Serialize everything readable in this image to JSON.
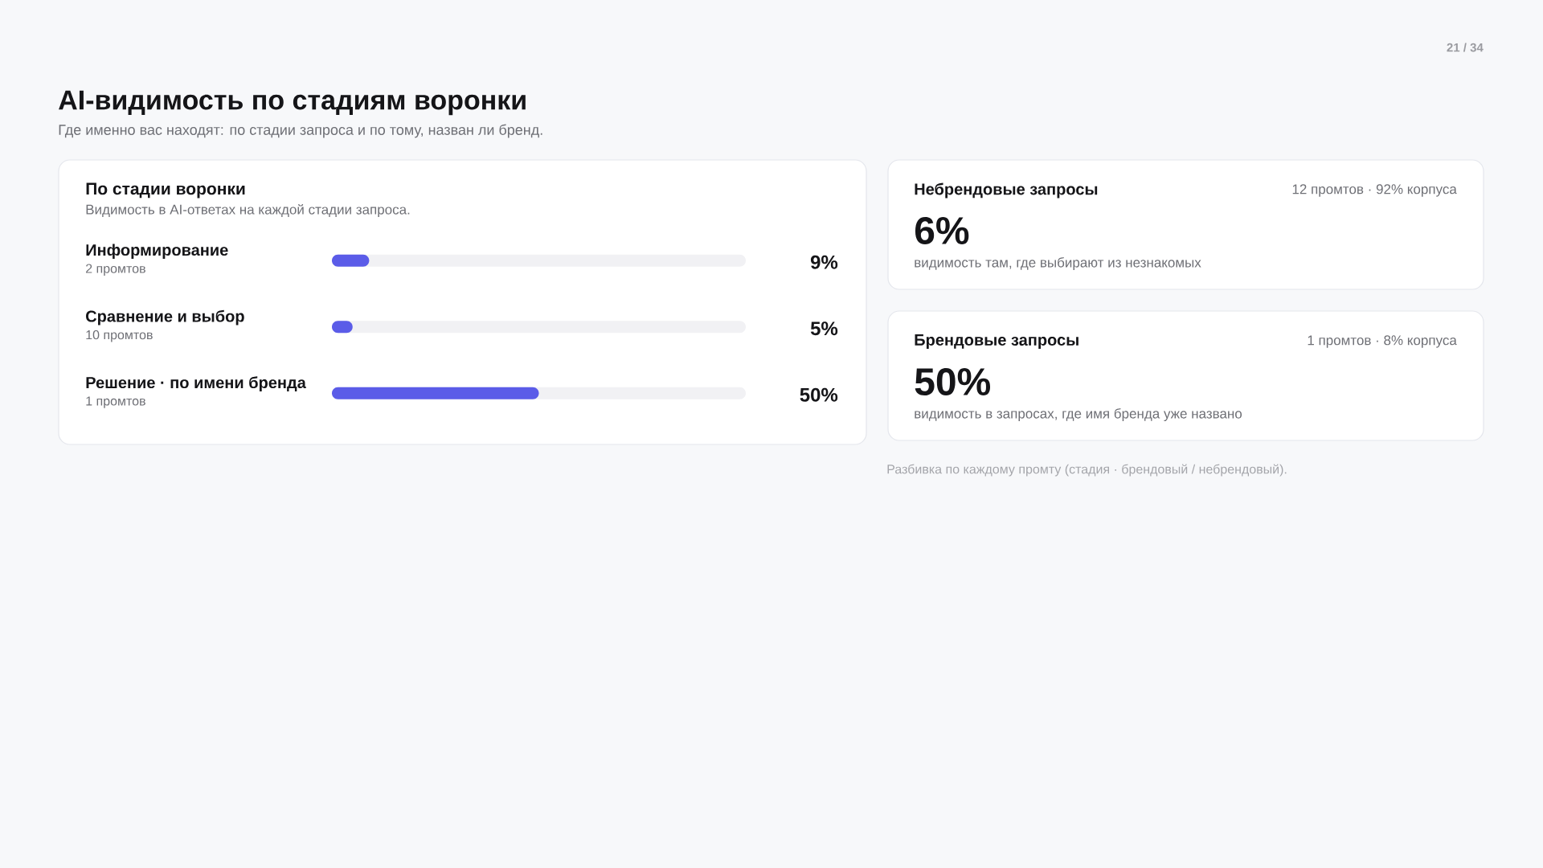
{
  "chart_data": [
    {
      "type": "other",
      "title": "AI-видимость по стадиям воронки",
      "subtitle": "Где именно вас находят: по стадии запроса и по тому, назван ли бренд.",
      "annotations": [
        "21 / 34",
        "Разбивка по каждому промту (стадия · брендовый / небрендовый)."
      ]
    },
    {
      "type": "bar",
      "orientation": "horizontal",
      "title": "По стадии воронки",
      "subtitle": "Видимость в AI-ответах на каждой стадии запроса.",
      "categories": [
        "Информирование",
        "Сравнение и выбор",
        "Решение · по имени бренда"
      ],
      "values": [
        9,
        5,
        50
      ],
      "value_labels": [
        "9%",
        "5%",
        "50%"
      ],
      "color": "#5b5ce8",
      "xlim": [
        0,
        100
      ],
      "tick_labels": "y",
      "annotations": [
        "2 промтов",
        "10 промтов",
        "1 промтов"
      ]
    },
    {
      "type": "other",
      "title": "Небрендовые запросы",
      "subtitle": "12 промтов · 92% корпуса",
      "annotations": [
        "6%",
        "видимость там, где выбирают из незнакомых"
      ]
    },
    {
      "type": "other",
      "title": "Брендовые запросы",
      "subtitle": "1 промтов · 8% корпуса",
      "annotations": [
        "50%",
        "видимость в запросах, где имя бренда уже названо"
      ]
    }
  ]
}
